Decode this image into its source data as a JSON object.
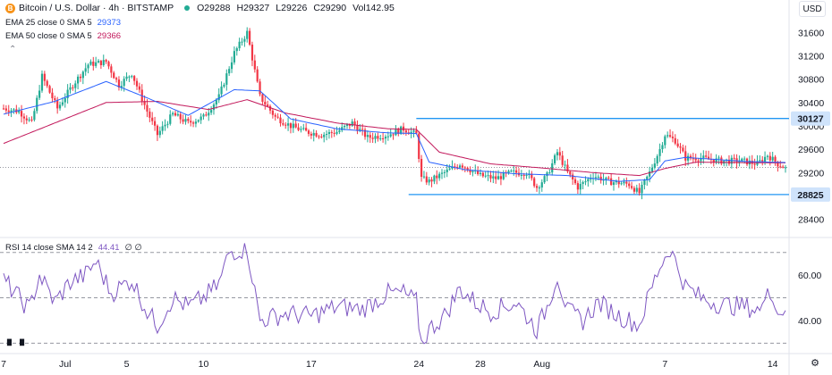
{
  "header": {
    "symbol": "Bitcoin / U.S. Dollar · 4h · BITSTAMP",
    "coin_glyph": "B",
    "ohlc": {
      "o": "O29288",
      "h": "H29327",
      "l": "L29226",
      "c": "C29290",
      "vol": "Vol142.95"
    },
    "currency": "USD"
  },
  "indicators": [
    {
      "label": "EMA 25 close 0 SMA 5",
      "value": "29373",
      "color": "#2962ff"
    },
    {
      "label": "EMA 50 close 0 SMA 5",
      "value": "29366",
      "color": "#c2185b"
    }
  ],
  "rsi_legend": {
    "label": "RSI 14 close SMA 14 2",
    "value": "44.41",
    "extra": "∅ ∅"
  },
  "icons": {
    "collapse": "chevron-up-icon",
    "logo": "tradingview-logo-icon",
    "settings": "gear-icon"
  },
  "colors": {
    "up": "#22ab94",
    "down": "#f23645",
    "ema25": "#2962ff",
    "ema50": "#c2185b",
    "level": "#2196f3",
    "rsi": "#7e57c2"
  },
  "chart_data": [
    {
      "type": "candlestick",
      "title": "Bitcoin / U.S. Dollar · 4h · BITSTAMP",
      "price_axis_ticks": [
        31600,
        31200,
        30800,
        30400,
        30000,
        29600,
        29200,
        28800,
        28400
      ],
      "ylim": [
        28150,
        31850
      ],
      "x_tick_labels": [
        {
          "label": "7",
          "candle": 0
        },
        {
          "label": "Jul",
          "candle": 24
        },
        {
          "label": "5",
          "candle": 48
        },
        {
          "label": "10",
          "candle": 78
        },
        {
          "label": "17",
          "candle": 120
        },
        {
          "label": "24",
          "candle": 162
        },
        {
          "label": "28",
          "candle": 186
        },
        {
          "label": "Aug",
          "candle": 210
        },
        {
          "label": "7",
          "candle": 258
        },
        {
          "label": "14",
          "candle": 300
        }
      ],
      "horizontal_levels": [
        {
          "price": 30127,
          "label": "30127",
          "start_candle": 161
        },
        {
          "price": 28825,
          "label": "28825",
          "start_candle": 158
        }
      ],
      "last_price": 29290,
      "keypoints": [
        [
          0,
          30300
        ],
        [
          6,
          30250
        ],
        [
          11,
          30050
        ],
        [
          15,
          30850
        ],
        [
          21,
          30300
        ],
        [
          27,
          30700
        ],
        [
          33,
          31050
        ],
        [
          40,
          31100
        ],
        [
          45,
          30700
        ],
        [
          50,
          30900
        ],
        [
          56,
          30250
        ],
        [
          60,
          29850
        ],
        [
          66,
          30200
        ],
        [
          72,
          30050
        ],
        [
          78,
          30150
        ],
        [
          84,
          30500
        ],
        [
          90,
          31250
        ],
        [
          95,
          31600
        ],
        [
          100,
          30500
        ],
        [
          106,
          30150
        ],
        [
          112,
          30000
        ],
        [
          118,
          29900
        ],
        [
          124,
          29850
        ],
        [
          130,
          29900
        ],
        [
          136,
          30050
        ],
        [
          142,
          29800
        ],
        [
          150,
          29850
        ],
        [
          156,
          29950
        ],
        [
          161,
          29850
        ],
        [
          163,
          29100
        ],
        [
          166,
          29050
        ],
        [
          172,
          29200
        ],
        [
          178,
          29350
        ],
        [
          182,
          29250
        ],
        [
          186,
          29150
        ],
        [
          192,
          29100
        ],
        [
          198,
          29200
        ],
        [
          204,
          29200
        ],
        [
          208,
          28950
        ],
        [
          212,
          29150
        ],
        [
          216,
          29550
        ],
        [
          220,
          29200
        ],
        [
          224,
          28950
        ],
        [
          230,
          29150
        ],
        [
          236,
          29050
        ],
        [
          244,
          29000
        ],
        [
          248,
          28850
        ],
        [
          252,
          29200
        ],
        [
          256,
          29600
        ],
        [
          258,
          29850
        ],
        [
          262,
          29750
        ],
        [
          266,
          29450
        ],
        [
          272,
          29450
        ],
        [
          280,
          29400
        ],
        [
          288,
          29400
        ],
        [
          294,
          29350
        ],
        [
          298,
          29500
        ],
        [
          302,
          29350
        ],
        [
          305,
          29290
        ]
      ],
      "ema25": [
        [
          0,
          30200
        ],
        [
          20,
          30420
        ],
        [
          40,
          30760
        ],
        [
          56,
          30480
        ],
        [
          72,
          30180
        ],
        [
          90,
          30620
        ],
        [
          100,
          30600
        ],
        [
          112,
          30120
        ],
        [
          130,
          29950
        ],
        [
          150,
          29880
        ],
        [
          161,
          29870
        ],
        [
          166,
          29380
        ],
        [
          180,
          29250
        ],
        [
          200,
          29180
        ],
        [
          220,
          29150
        ],
        [
          240,
          29050
        ],
        [
          252,
          29080
        ],
        [
          258,
          29400
        ],
        [
          266,
          29460
        ],
        [
          290,
          29390
        ],
        [
          305,
          29373
        ]
      ],
      "ema50": [
        [
          0,
          29700
        ],
        [
          20,
          30050
        ],
        [
          40,
          30400
        ],
        [
          60,
          30420
        ],
        [
          80,
          30280
        ],
        [
          95,
          30450
        ],
        [
          110,
          30220
        ],
        [
          130,
          30050
        ],
        [
          150,
          29950
        ],
        [
          161,
          29940
        ],
        [
          170,
          29550
        ],
        [
          190,
          29350
        ],
        [
          210,
          29280
        ],
        [
          230,
          29200
        ],
        [
          248,
          29150
        ],
        [
          258,
          29270
        ],
        [
          270,
          29380
        ],
        [
          290,
          29370
        ],
        [
          305,
          29366
        ]
      ]
    },
    {
      "type": "line",
      "title": "RSI 14 close SMA 14 2",
      "y_axis_ticks": [
        60.0,
        40.0
      ],
      "reference_lines": [
        70,
        50,
        30
      ],
      "ylim": [
        27,
        75
      ],
      "keypoints": [
        [
          0,
          58
        ],
        [
          6,
          50
        ],
        [
          10,
          45
        ],
        [
          14,
          60
        ],
        [
          20,
          48
        ],
        [
          26,
          57
        ],
        [
          32,
          60
        ],
        [
          36,
          66
        ],
        [
          42,
          52
        ],
        [
          50,
          58
        ],
        [
          56,
          44
        ],
        [
          60,
          38
        ],
        [
          66,
          50
        ],
        [
          72,
          46
        ],
        [
          78,
          50
        ],
        [
          84,
          56
        ],
        [
          88,
          70
        ],
        [
          95,
          72
        ],
        [
          100,
          40
        ],
        [
          110,
          43
        ],
        [
          120,
          42
        ],
        [
          130,
          46
        ],
        [
          140,
          45
        ],
        [
          150,
          52
        ],
        [
          156,
          52
        ],
        [
          161,
          48
        ],
        [
          163,
          30
        ],
        [
          166,
          36
        ],
        [
          172,
          42
        ],
        [
          178,
          54
        ],
        [
          184,
          48
        ],
        [
          190,
          44
        ],
        [
          200,
          48
        ],
        [
          208,
          36
        ],
        [
          212,
          46
        ],
        [
          216,
          60
        ],
        [
          220,
          44
        ],
        [
          226,
          40
        ],
        [
          232,
          48
        ],
        [
          240,
          42
        ],
        [
          248,
          38
        ],
        [
          252,
          52
        ],
        [
          256,
          64
        ],
        [
          260,
          72
        ],
        [
          262,
          66
        ],
        [
          266,
          55
        ],
        [
          272,
          50
        ],
        [
          280,
          47
        ],
        [
          290,
          46
        ],
        [
          296,
          44
        ],
        [
          298,
          58
        ],
        [
          301,
          45
        ],
        [
          305,
          44.41
        ]
      ]
    }
  ]
}
